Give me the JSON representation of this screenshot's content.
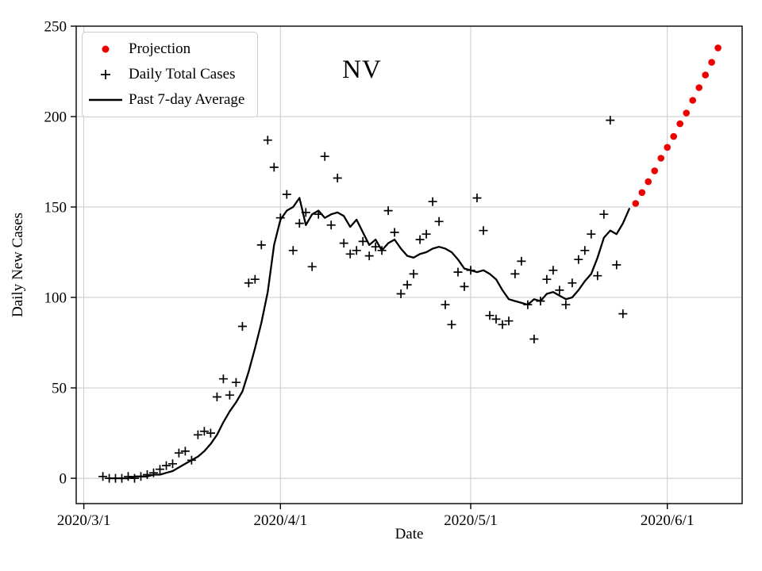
{
  "chart_data": {
    "type": "line+scatter",
    "title": "NV",
    "xlabel": "Date",
    "ylabel": "Daily New Cases",
    "grid": true,
    "grid_color": "#c9c9c9",
    "legend_position": "upper-left",
    "x_tick_labels": [
      "2020/3/1",
      "2020/4/1",
      "2020/5/1",
      "2020/6/1"
    ],
    "x_tick_days": [
      0,
      31,
      61,
      92
    ],
    "y_ticks": [
      0,
      50,
      100,
      150,
      200,
      250
    ],
    "x_range_days": [
      -1.2,
      103.8
    ],
    "y_range": [
      -14,
      250
    ],
    "series": [
      {
        "name": "Projection",
        "type": "scatter",
        "marker": "dot",
        "color": "#ee0000",
        "points": [
          [
            "2020/5/27",
            152
          ],
          [
            "2020/5/28",
            158
          ],
          [
            "2020/5/29",
            164
          ],
          [
            "2020/5/30",
            170
          ],
          [
            "2020/5/31",
            177
          ],
          [
            "2020/6/1",
            183
          ],
          [
            "2020/6/2",
            189
          ],
          [
            "2020/6/3",
            196
          ],
          [
            "2020/6/4",
            202
          ],
          [
            "2020/6/5",
            209
          ],
          [
            "2020/6/6",
            216
          ],
          [
            "2020/6/7",
            223
          ],
          [
            "2020/6/8",
            230
          ],
          [
            "2020/6/9",
            238
          ]
        ]
      },
      {
        "name": "Daily Total Cases",
        "type": "scatter",
        "marker": "plus",
        "color": "#000000",
        "points": [
          [
            "2020/3/4",
            1
          ],
          [
            "2020/3/5",
            0
          ],
          [
            "2020/3/6",
            0
          ],
          [
            "2020/3/7",
            0
          ],
          [
            "2020/3/8",
            1
          ],
          [
            "2020/3/9",
            0
          ],
          [
            "2020/3/10",
            1
          ],
          [
            "2020/3/11",
            2
          ],
          [
            "2020/3/12",
            3
          ],
          [
            "2020/3/13",
            5
          ],
          [
            "2020/3/14",
            7
          ],
          [
            "2020/3/15",
            8
          ],
          [
            "2020/3/16",
            14
          ],
          [
            "2020/3/17",
            15
          ],
          [
            "2020/3/18",
            10
          ],
          [
            "2020/3/19",
            24
          ],
          [
            "2020/3/20",
            26
          ],
          [
            "2020/3/21",
            25
          ],
          [
            "2020/3/22",
            45
          ],
          [
            "2020/3/23",
            55
          ],
          [
            "2020/3/24",
            46
          ],
          [
            "2020/3/25",
            53
          ],
          [
            "2020/3/26",
            84
          ],
          [
            "2020/3/27",
            108
          ],
          [
            "2020/3/28",
            110
          ],
          [
            "2020/3/29",
            129
          ],
          [
            "2020/3/30",
            187
          ],
          [
            "2020/3/31",
            172
          ],
          [
            "2020/4/1",
            144
          ],
          [
            "2020/4/2",
            157
          ],
          [
            "2020/4/3",
            126
          ],
          [
            "2020/4/4",
            141
          ],
          [
            "2020/4/5",
            147
          ],
          [
            "2020/4/6",
            117
          ],
          [
            "2020/4/7",
            146
          ],
          [
            "2020/4/8",
            178
          ],
          [
            "2020/4/9",
            140
          ],
          [
            "2020/4/10",
            166
          ],
          [
            "2020/4/11",
            130
          ],
          [
            "2020/4/12",
            124
          ],
          [
            "2020/4/13",
            126
          ],
          [
            "2020/4/14",
            131
          ],
          [
            "2020/4/15",
            123
          ],
          [
            "2020/4/16",
            128
          ],
          [
            "2020/4/17",
            126
          ],
          [
            "2020/4/18",
            148
          ],
          [
            "2020/4/19",
            136
          ],
          [
            "2020/4/20",
            102
          ],
          [
            "2020/4/21",
            107
          ],
          [
            "2020/4/22",
            113
          ],
          [
            "2020/4/23",
            132
          ],
          [
            "2020/4/24",
            135
          ],
          [
            "2020/4/25",
            153
          ],
          [
            "2020/4/26",
            142
          ],
          [
            "2020/4/27",
            96
          ],
          [
            "2020/4/28",
            85
          ],
          [
            "2020/4/29",
            114
          ],
          [
            "2020/4/30",
            106
          ],
          [
            "2020/5/1",
            115
          ],
          [
            "2020/5/2",
            155
          ],
          [
            "2020/5/3",
            137
          ],
          [
            "2020/5/4",
            90
          ],
          [
            "2020/5/5",
            88
          ],
          [
            "2020/5/6",
            85
          ],
          [
            "2020/5/7",
            87
          ],
          [
            "2020/5/8",
            113
          ],
          [
            "2020/5/9",
            120
          ],
          [
            "2020/5/10",
            96
          ],
          [
            "2020/5/11",
            77
          ],
          [
            "2020/5/12",
            98
          ],
          [
            "2020/5/13",
            110
          ],
          [
            "2020/5/14",
            115
          ],
          [
            "2020/5/15",
            104
          ],
          [
            "2020/5/16",
            96
          ],
          [
            "2020/5/17",
            108
          ],
          [
            "2020/5/18",
            121
          ],
          [
            "2020/5/19",
            126
          ],
          [
            "2020/5/20",
            135
          ],
          [
            "2020/5/21",
            112
          ],
          [
            "2020/5/22",
            146
          ],
          [
            "2020/5/23",
            198
          ],
          [
            "2020/5/24",
            118
          ],
          [
            "2020/5/25",
            91
          ]
        ]
      },
      {
        "name": "Past 7-day Average",
        "type": "line",
        "color": "#000000",
        "points": [
          [
            "2020/3/5",
            0
          ],
          [
            "2020/3/6",
            0
          ],
          [
            "2020/3/7",
            0
          ],
          [
            "2020/3/8",
            0
          ],
          [
            "2020/3/9",
            1
          ],
          [
            "2020/3/10",
            1
          ],
          [
            "2020/3/11",
            1
          ],
          [
            "2020/3/12",
            2
          ],
          [
            "2020/3/13",
            2
          ],
          [
            "2020/3/14",
            3
          ],
          [
            "2020/3/15",
            4
          ],
          [
            "2020/3/16",
            6
          ],
          [
            "2020/3/17",
            8
          ],
          [
            "2020/3/18",
            10
          ],
          [
            "2020/3/19",
            12
          ],
          [
            "2020/3/20",
            15
          ],
          [
            "2020/3/21",
            19
          ],
          [
            "2020/3/22",
            24
          ],
          [
            "2020/3/23",
            31
          ],
          [
            "2020/3/24",
            37
          ],
          [
            "2020/3/25",
            42
          ],
          [
            "2020/3/26",
            48
          ],
          [
            "2020/3/27",
            59
          ],
          [
            "2020/3/28",
            72
          ],
          [
            "2020/3/29",
            86
          ],
          [
            "2020/3/30",
            103
          ],
          [
            "2020/3/31",
            129
          ],
          [
            "2020/4/1",
            143
          ],
          [
            "2020/4/2",
            148
          ],
          [
            "2020/4/3",
            150
          ],
          [
            "2020/4/4",
            155
          ],
          [
            "2020/4/5",
            140
          ],
          [
            "2020/4/6",
            146
          ],
          [
            "2020/4/7",
            148
          ],
          [
            "2020/4/8",
            144
          ],
          [
            "2020/4/9",
            146
          ],
          [
            "2020/4/10",
            147
          ],
          [
            "2020/4/11",
            145
          ],
          [
            "2020/4/12",
            139
          ],
          [
            "2020/4/13",
            143
          ],
          [
            "2020/4/14",
            136
          ],
          [
            "2020/4/15",
            129
          ],
          [
            "2020/4/16",
            132
          ],
          [
            "2020/4/17",
            126
          ],
          [
            "2020/4/18",
            130
          ],
          [
            "2020/4/19",
            132
          ],
          [
            "2020/4/20",
            127
          ],
          [
            "2020/4/21",
            123
          ],
          [
            "2020/4/22",
            122
          ],
          [
            "2020/4/23",
            124
          ],
          [
            "2020/4/24",
            125
          ],
          [
            "2020/4/25",
            127
          ],
          [
            "2020/4/26",
            128
          ],
          [
            "2020/4/27",
            127
          ],
          [
            "2020/4/28",
            125
          ],
          [
            "2020/4/29",
            121
          ],
          [
            "2020/4/30",
            116
          ],
          [
            "2020/5/1",
            115
          ],
          [
            "2020/5/2",
            114
          ],
          [
            "2020/5/3",
            115
          ],
          [
            "2020/5/4",
            113
          ],
          [
            "2020/5/5",
            110
          ],
          [
            "2020/5/6",
            104
          ],
          [
            "2020/5/7",
            99
          ],
          [
            "2020/5/8",
            98
          ],
          [
            "2020/5/9",
            97
          ],
          [
            "2020/5/10",
            96
          ],
          [
            "2020/5/11",
            99
          ],
          [
            "2020/5/12",
            98
          ],
          [
            "2020/5/13",
            102
          ],
          [
            "2020/5/14",
            103
          ],
          [
            "2020/5/15",
            101
          ],
          [
            "2020/5/16",
            99
          ],
          [
            "2020/5/17",
            100
          ],
          [
            "2020/5/18",
            104
          ],
          [
            "2020/5/19",
            109
          ],
          [
            "2020/5/20",
            113
          ],
          [
            "2020/5/21",
            122
          ],
          [
            "2020/5/22",
            133
          ],
          [
            "2020/5/23",
            137
          ],
          [
            "2020/5/24",
            135
          ],
          [
            "2020/5/25",
            141
          ],
          [
            "2020/5/26",
            149
          ]
        ]
      }
    ]
  }
}
